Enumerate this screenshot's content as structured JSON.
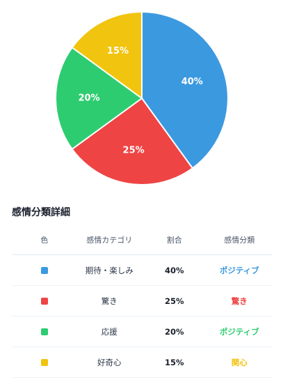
{
  "chart_data": {
    "type": "pie",
    "slices": [
      {
        "label": "期待・楽しみ",
        "value": 40,
        "display": "40%",
        "color": "#3b99e0"
      },
      {
        "label": "驚き",
        "value": 25,
        "display": "25%",
        "color": "#ef4444"
      },
      {
        "label": "応援",
        "value": 20,
        "display": "20%",
        "color": "#2ecc71"
      },
      {
        "label": "好奇心",
        "value": 15,
        "display": "15%",
        "color": "#f1c40f"
      }
    ]
  },
  "table": {
    "title": "感情分類詳細",
    "headers": {
      "color": "色",
      "category": "感情カテゴリ",
      "ratio": "割合",
      "class": "感情分類"
    },
    "rows": [
      {
        "category": "期待・楽しみ",
        "ratio": "40%",
        "class": "ポジティブ",
        "swatch": "#3b99e0",
        "class_color": "#3b99e0"
      },
      {
        "category": "驚き",
        "ratio": "25%",
        "class": "驚き",
        "swatch": "#ef4444",
        "class_color": "#ef4444"
      },
      {
        "category": "応援",
        "ratio": "20%",
        "class": "ポジティブ",
        "swatch": "#2ecc71",
        "class_color": "#2ecc71"
      },
      {
        "category": "好奇心",
        "ratio": "15%",
        "class": "関心",
        "swatch": "#f1c40f",
        "class_color": "#f1c40f"
      }
    ]
  }
}
